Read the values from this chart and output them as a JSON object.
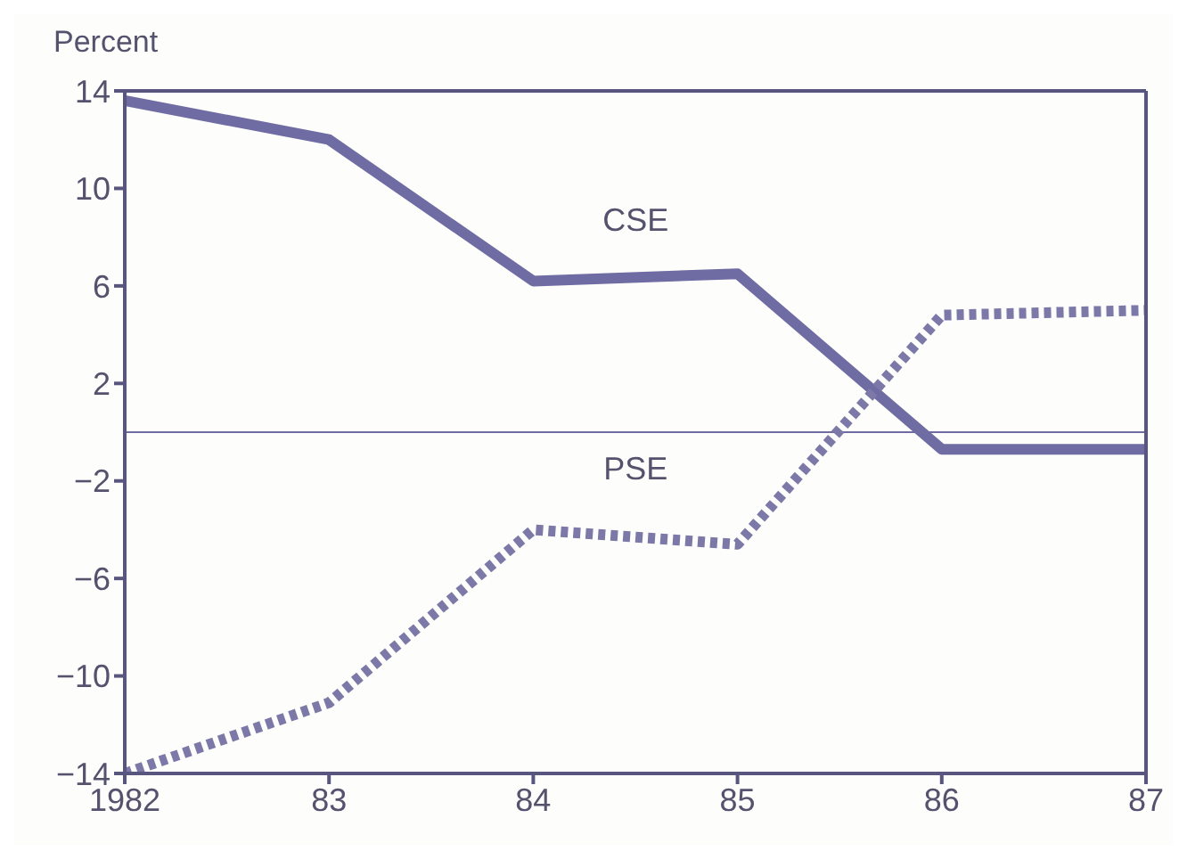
{
  "chart_data": {
    "type": "line",
    "ylabel": "Percent",
    "categories": [
      "1982",
      "83",
      "84",
      "85",
      "86",
      "87"
    ],
    "series": [
      {
        "name": "CSE",
        "color": "#6f6ca3",
        "line_style": "solid",
        "values": [
          13.6,
          12.0,
          6.2,
          6.5,
          -0.7,
          -0.7
        ]
      },
      {
        "name": "PSE",
        "color": "#7c79a8",
        "line_style": "dotted",
        "values": [
          -14,
          -11.1,
          -4.0,
          -4.6,
          4.8,
          5.0
        ]
      }
    ],
    "ylim": [
      -14,
      14
    ],
    "yticks": [
      -14,
      -10,
      -6,
      -2,
      2,
      6,
      10,
      14
    ],
    "ref_lines": [
      {
        "axis": "y",
        "value": 0,
        "color": "#6f6ca3"
      }
    ],
    "marker": "none"
  }
}
